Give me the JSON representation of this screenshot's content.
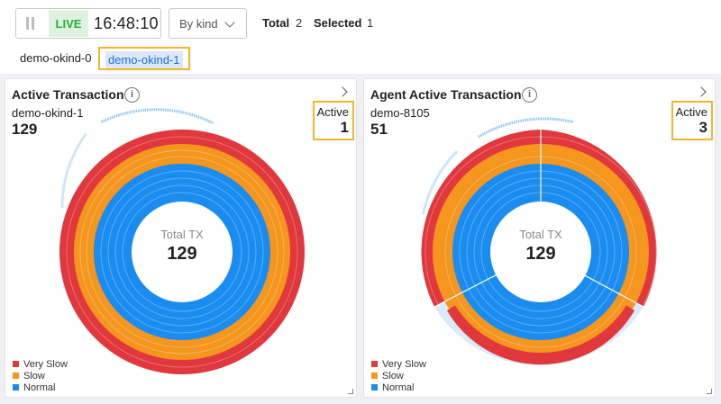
{
  "toolbar": {
    "live_label": "LIVE",
    "clock": "16:48:10",
    "kind_select": "By kind",
    "total_label": "Total",
    "total_value": "2",
    "selected_label": "Selected",
    "selected_value": "1"
  },
  "chips": [
    {
      "label": "demo-okind-0",
      "selected": false
    },
    {
      "label": "demo-okind-1",
      "selected": true
    }
  ],
  "colors": {
    "very_slow": "#e0383c",
    "slow": "#f5961f",
    "normal": "#1a8cf0",
    "live_green": "#2dae3c",
    "highlight": "#f1b62a"
  },
  "cards": [
    {
      "title": "Active Transaction",
      "subtitle": "demo-okind-1",
      "count": "129",
      "active_label": "Active",
      "active_value": "1",
      "center_label": "Total TX",
      "center_value": "129",
      "legend": [
        "Very Slow",
        "Slow",
        "Normal"
      ]
    },
    {
      "title": "Agent Active Transaction",
      "subtitle": "demo-8105",
      "count": "51",
      "active_label": "Active",
      "active_value": "3",
      "center_label": "Total TX",
      "center_value": "129",
      "legend": [
        "Very Slow",
        "Slow",
        "Normal"
      ]
    }
  ]
}
